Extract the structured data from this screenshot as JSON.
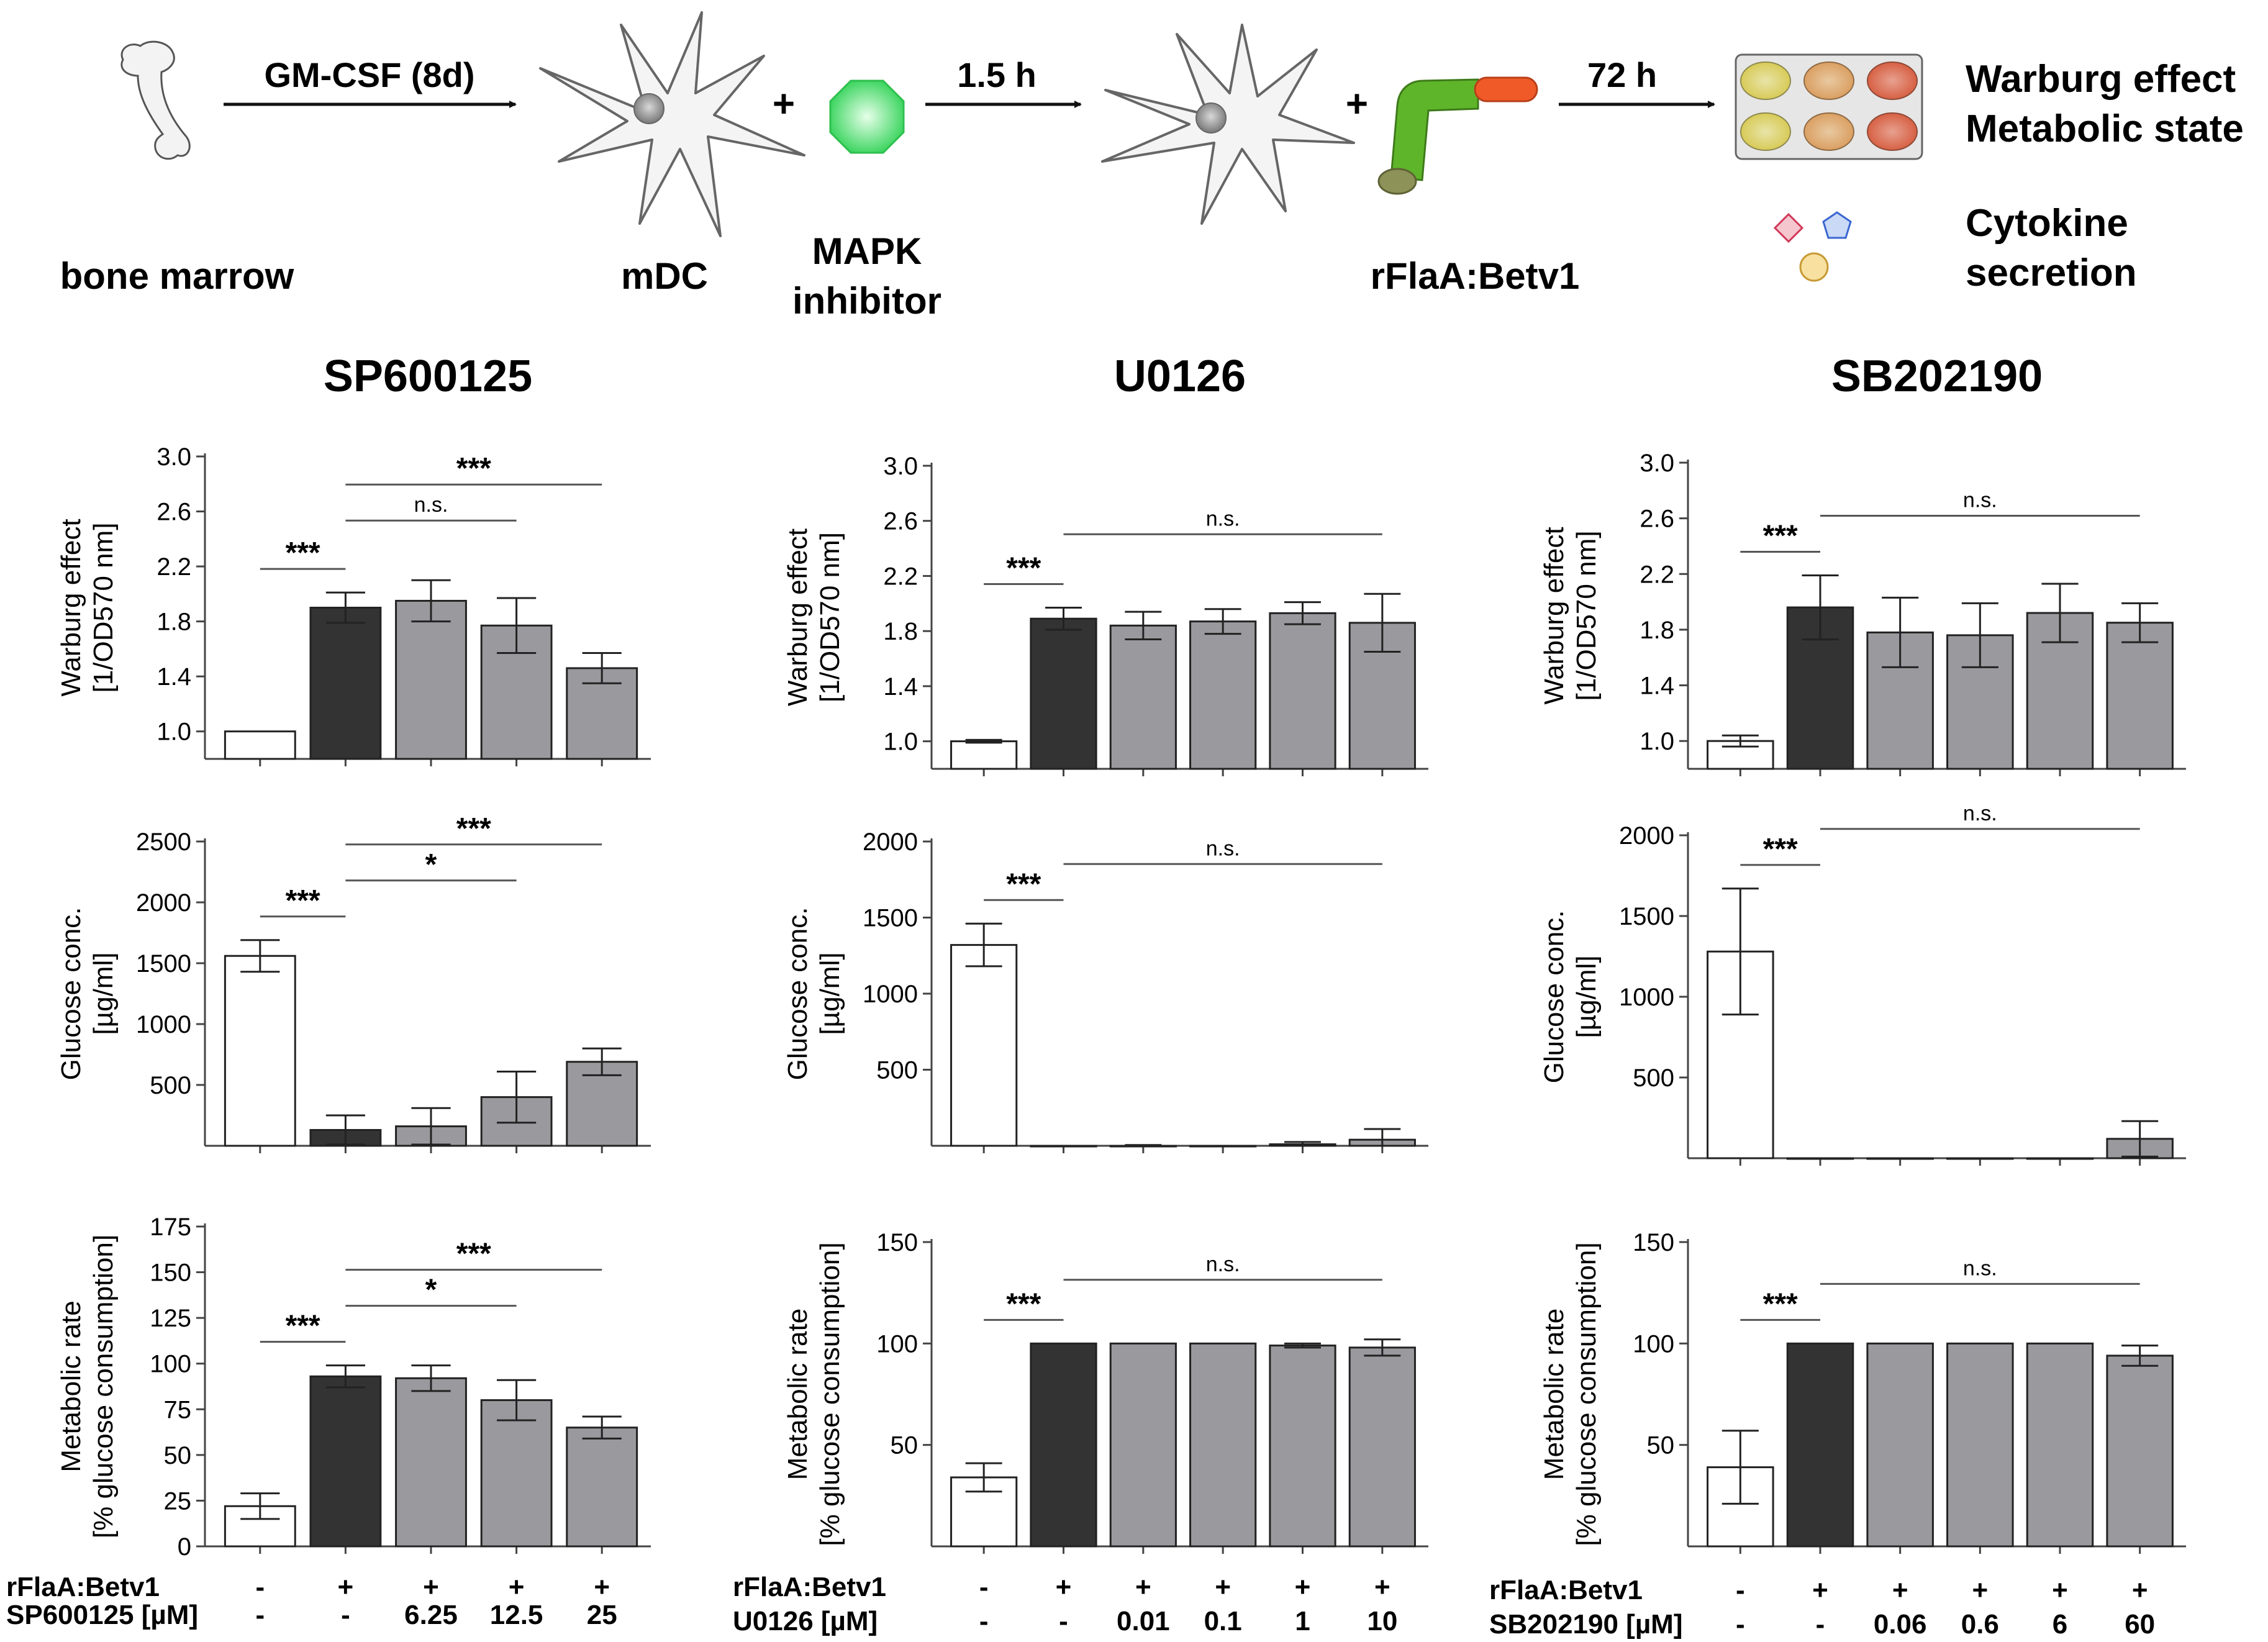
{
  "schematic": {
    "source_label": "bone marrow",
    "step1_label": "GM-CSF (8d)",
    "cell1_label": "mDC",
    "inhibitor_label_1": "MAPK",
    "inhibitor_label_2": "inhibitor",
    "step2_label": "1.5 h",
    "stimulus_label": "rFlaA:Betv1",
    "step3_label": "72 h",
    "readout1_line1": "Warburg effect",
    "readout1_line2": "Metabolic state",
    "readout2_line1": "Cytokine",
    "readout2_line2": "secretion",
    "plus": "+"
  },
  "colors": {
    "control": "#ffffff",
    "stimulated": "#333333",
    "inhibitor": "#9a9a9e",
    "bar_stroke": "#222222",
    "bracket": "#555555"
  },
  "chart_data": [
    {
      "panel": "SP600125 warburg",
      "type": "bar",
      "title": "SP600125",
      "ylabel_lines": [
        "Warburg effect",
        "[1/OD570 nm]"
      ],
      "ylim": [
        0.8,
        3.0
      ],
      "yticks": [
        "1.0",
        "1.4",
        "1.8",
        "2.2",
        "2.6",
        "3.0"
      ],
      "values": [
        1.0,
        1.9,
        1.95,
        1.77,
        1.46
      ],
      "errors": [
        0.0,
        0.11,
        0.15,
        0.2,
        0.11
      ],
      "bar_kinds": [
        "control",
        "stimulated",
        "inhibitor",
        "inhibitor",
        "inhibitor"
      ],
      "annotations": [
        {
          "label": "***",
          "from": 0,
          "to": 1
        },
        {
          "label": "n.s.",
          "from": 1,
          "to": 3
        },
        {
          "label": "***",
          "from": 1,
          "to": 4
        }
      ]
    },
    {
      "panel": "U0126 warburg",
      "type": "bar",
      "title": "U0126",
      "ylabel_lines": [
        "Warburg effect",
        "[1/OD570 nm]"
      ],
      "ylim": [
        0.8,
        3.0
      ],
      "yticks": [
        "1.0",
        "1.4",
        "1.8",
        "2.2",
        "2.6",
        "3.0"
      ],
      "values": [
        1.0,
        1.89,
        1.84,
        1.87,
        1.93,
        1.86
      ],
      "errors": [
        0.01,
        0.08,
        0.1,
        0.09,
        0.08,
        0.21
      ],
      "bar_kinds": [
        "control",
        "stimulated",
        "inhibitor",
        "inhibitor",
        "inhibitor",
        "inhibitor"
      ],
      "annotations": [
        {
          "label": "***",
          "from": 0,
          "to": 1
        },
        {
          "label": "n.s.",
          "from": 1,
          "to": 5
        }
      ]
    },
    {
      "panel": "SB202190 warburg",
      "type": "bar",
      "title": "SB202190",
      "ylabel_lines": [
        "Warburg effect",
        "[1/OD570 nm]"
      ],
      "ylim": [
        0.8,
        3.0
      ],
      "yticks": [
        "1.0",
        "1.4",
        "1.8",
        "2.2",
        "2.6",
        "3.0"
      ],
      "values": [
        1.0,
        1.96,
        1.78,
        1.76,
        1.92,
        1.85
      ],
      "errors": [
        0.04,
        0.23,
        0.25,
        0.23,
        0.21,
        0.14
      ],
      "bar_kinds": [
        "control",
        "stimulated",
        "inhibitor",
        "inhibitor",
        "inhibitor",
        "inhibitor"
      ],
      "annotations": [
        {
          "label": "***",
          "from": 0,
          "to": 1
        },
        {
          "label": "n.s.",
          "from": 1,
          "to": 5
        }
      ]
    },
    {
      "panel": "SP600125 glucose",
      "type": "bar",
      "ylabel_lines": [
        "Glucose conc.",
        "[µg/ml]"
      ],
      "ylim": [
        0,
        2500
      ],
      "yticks": [
        "500",
        "1000",
        "1500",
        "2000",
        "2500"
      ],
      "values": [
        1560,
        130,
        160,
        400,
        690
      ],
      "errors": [
        130,
        120,
        150,
        210,
        110
      ],
      "bar_kinds": [
        "control",
        "stimulated",
        "inhibitor",
        "inhibitor",
        "inhibitor"
      ],
      "annotations": [
        {
          "label": "***",
          "from": 0,
          "to": 1
        },
        {
          "label": "*",
          "from": 1,
          "to": 3
        },
        {
          "label": "***",
          "from": 1,
          "to": 4
        }
      ]
    },
    {
      "panel": "U0126 glucose",
      "type": "bar",
      "ylabel_lines": [
        "Glucose conc.",
        "[µg/ml]"
      ],
      "ylim": [
        0,
        2000
      ],
      "yticks": [
        "500",
        "1000",
        "1500",
        "2000"
      ],
      "values": [
        1320,
        0,
        0,
        0,
        10,
        40
      ],
      "errors": [
        140,
        0,
        5,
        0,
        15,
        70
      ],
      "bar_kinds": [
        "control",
        "stimulated",
        "inhibitor",
        "inhibitor",
        "inhibitor",
        "inhibitor"
      ],
      "annotations": [
        {
          "label": "***",
          "from": 0,
          "to": 1
        },
        {
          "label": "n.s.",
          "from": 1,
          "to": 5
        }
      ]
    },
    {
      "panel": "SB202190 glucose",
      "type": "bar",
      "ylabel_lines": [
        "Glucose conc.",
        "[µg/ml]"
      ],
      "ylim": [
        0,
        2000
      ],
      "yticks": [
        "500",
        "1000",
        "1500",
        "2000"
      ],
      "values": [
        1280,
        0,
        0,
        0,
        0,
        120
      ],
      "errors": [
        390,
        0,
        0,
        0,
        0,
        110
      ],
      "bar_kinds": [
        "control",
        "stimulated",
        "inhibitor",
        "inhibitor",
        "inhibitor",
        "inhibitor"
      ],
      "annotations": [
        {
          "label": "***",
          "from": 0,
          "to": 1
        },
        {
          "label": "n.s.",
          "from": 1,
          "to": 5
        }
      ]
    },
    {
      "panel": "SP600125 metabolic",
      "type": "bar",
      "ylabel_lines": [
        "Metabolic rate",
        "[% glucose consumption]"
      ],
      "ylim": [
        0,
        175
      ],
      "yticks": [
        "0",
        "25",
        "50",
        "75",
        "100",
        "125",
        "150",
        "175"
      ],
      "values": [
        22,
        93,
        92,
        80,
        65
      ],
      "errors": [
        7,
        6,
        7,
        11,
        6
      ],
      "bar_kinds": [
        "control",
        "stimulated",
        "inhibitor",
        "inhibitor",
        "inhibitor"
      ],
      "row1_label": "rFlaA:Betv1",
      "row1": [
        "-",
        "+",
        "+",
        "+",
        "+"
      ],
      "row2_label": "SP600125 [µM]",
      "row2": [
        "-",
        "-",
        "6.25",
        "12.5",
        "25"
      ],
      "annotations": [
        {
          "label": "***",
          "from": 0,
          "to": 1
        },
        {
          "label": "*",
          "from": 1,
          "to": 3
        },
        {
          "label": "***",
          "from": 1,
          "to": 4
        }
      ]
    },
    {
      "panel": "U0126 metabolic",
      "type": "bar",
      "ylabel_lines": [
        "Metabolic rate",
        "[% glucose consumption]"
      ],
      "ylim": [
        0,
        150
      ],
      "yticks": [
        "50",
        "100",
        "150"
      ],
      "values": [
        34,
        100,
        100,
        100,
        99,
        98
      ],
      "errors": [
        7,
        0,
        0,
        0,
        1,
        4
      ],
      "bar_kinds": [
        "control",
        "stimulated",
        "inhibitor",
        "inhibitor",
        "inhibitor",
        "inhibitor"
      ],
      "row1_label": "rFlaA:Betv1",
      "row1": [
        "-",
        "+",
        "+",
        "+",
        "+",
        "+"
      ],
      "row2_label": "U0126 [µM]",
      "row2": [
        "-",
        "-",
        "0.01",
        "0.1",
        "1",
        "10"
      ],
      "annotations": [
        {
          "label": "***",
          "from": 0,
          "to": 1
        },
        {
          "label": "n.s.",
          "from": 1,
          "to": 5
        }
      ]
    },
    {
      "panel": "SB202190 metabolic",
      "type": "bar",
      "ylabel_lines": [
        "Metabolic rate",
        "[% glucose consumption]"
      ],
      "ylim": [
        0,
        150
      ],
      "yticks": [
        "50",
        "100",
        "150"
      ],
      "values": [
        39,
        100,
        100,
        100,
        100,
        94
      ],
      "errors": [
        18,
        0,
        0,
        0,
        0,
        5
      ],
      "bar_kinds": [
        "control",
        "stimulated",
        "inhibitor",
        "inhibitor",
        "inhibitor",
        "inhibitor"
      ],
      "row1_label": "rFlaA:Betv1",
      "row1": [
        "-",
        "+",
        "+",
        "+",
        "+",
        "+"
      ],
      "row2_label": "SB202190 [µM]",
      "row2": [
        "-",
        "-",
        "0.06",
        "0.6",
        "6",
        "60"
      ],
      "annotations": [
        {
          "label": "***",
          "from": 0,
          "to": 1
        },
        {
          "label": "n.s.",
          "from": 1,
          "to": 5
        }
      ]
    }
  ]
}
